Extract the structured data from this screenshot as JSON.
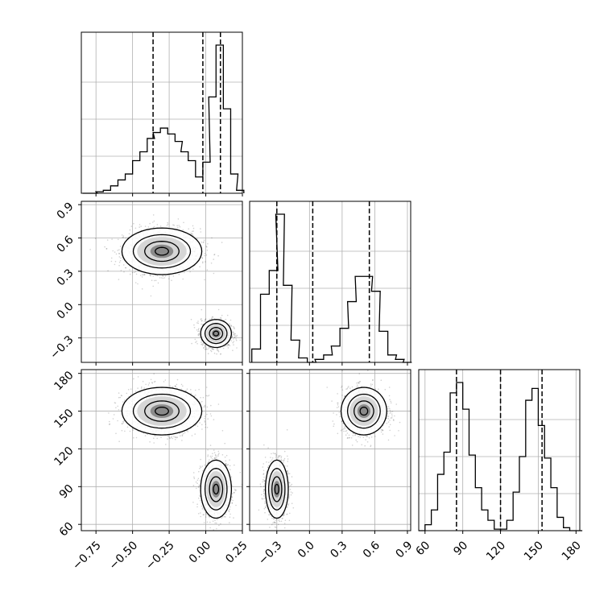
{
  "chart_data": {
    "type": "corner",
    "description_of_parameters": "three parameters, no printed names",
    "grid": true,
    "panels": {
      "hist_p1": {
        "type": "histogram",
        "parameter": 1,
        "xlim": [
          -0.85,
          0.25
        ],
        "quantile_lines": [
          -0.36,
          -0.02,
          0.1
        ],
        "bins": [
          [
            -0.84,
            0.0
          ],
          [
            -0.79,
            0.0
          ],
          [
            -0.75,
            0.01
          ],
          [
            -0.7,
            0.02
          ],
          [
            -0.65,
            0.05
          ],
          [
            -0.6,
            0.09
          ],
          [
            -0.55,
            0.13
          ],
          [
            -0.5,
            0.22
          ],
          [
            -0.45,
            0.28
          ],
          [
            -0.4,
            0.37
          ],
          [
            -0.36,
            0.41
          ],
          [
            -0.31,
            0.44
          ],
          [
            -0.26,
            0.4
          ],
          [
            -0.21,
            0.35
          ],
          [
            -0.17,
            0.28
          ],
          [
            -0.12,
            0.22
          ],
          [
            -0.07,
            0.11
          ],
          [
            -0.02,
            0.21
          ],
          [
            0.02,
            0.65
          ],
          [
            0.07,
            1.0
          ],
          [
            0.12,
            0.57
          ],
          [
            0.17,
            0.13
          ],
          [
            0.21,
            0.02
          ]
        ]
      },
      "hist_p2": {
        "type": "histogram",
        "parameter": 2,
        "xlim": [
          -0.55,
          0.93
        ],
        "quantile_lines": [
          -0.3,
          0.03,
          0.55
        ],
        "bins": [
          [
            -0.53,
            0.09
          ],
          [
            -0.45,
            0.46
          ],
          [
            -0.37,
            0.62
          ],
          [
            -0.31,
            1.0
          ],
          [
            -0.24,
            0.52
          ],
          [
            -0.17,
            0.15
          ],
          [
            -0.1,
            0.03
          ],
          [
            -0.02,
            0.0
          ],
          [
            0.05,
            0.02
          ],
          [
            0.13,
            0.05
          ],
          [
            0.2,
            0.11
          ],
          [
            0.28,
            0.23
          ],
          [
            0.35,
            0.41
          ],
          [
            0.42,
            0.58
          ],
          [
            0.5,
            0.58
          ],
          [
            0.57,
            0.48
          ],
          [
            0.64,
            0.21
          ],
          [
            0.72,
            0.05
          ],
          [
            0.79,
            0.02
          ],
          [
            0.86,
            0.0
          ]
        ]
      },
      "hist_p3": {
        "type": "histogram",
        "parameter": 3,
        "xlim": [
          55,
          183
        ],
        "quantile_lines": [
          85,
          120,
          153
        ],
        "bins": [
          [
            55,
            0.0
          ],
          [
            60,
            0.04
          ],
          [
            65,
            0.14
          ],
          [
            70,
            0.38
          ],
          [
            75,
            0.53
          ],
          [
            80,
            0.93
          ],
          [
            85,
            1.0
          ],
          [
            90,
            0.82
          ],
          [
            95,
            0.51
          ],
          [
            100,
            0.29
          ],
          [
            105,
            0.14
          ],
          [
            110,
            0.07
          ],
          [
            115,
            0.01
          ],
          [
            120,
            0.01
          ],
          [
            125,
            0.07
          ],
          [
            130,
            0.26
          ],
          [
            135,
            0.5
          ],
          [
            140,
            0.88
          ],
          [
            145,
            0.96
          ],
          [
            150,
            0.71
          ],
          [
            155,
            0.49
          ],
          [
            160,
            0.29
          ],
          [
            165,
            0.09
          ],
          [
            170,
            0.02
          ],
          [
            175,
            0.0
          ],
          [
            180,
            0.0
          ]
        ]
      },
      "scatter_p1_p2": {
        "type": "scatter-density",
        "x_parameter": 1,
        "y_parameter": 2,
        "xlim": [
          -0.85,
          0.25
        ],
        "ylim": [
          -0.52,
          0.93
        ],
        "clusters": [
          {
            "center": [
              -0.3,
              0.48
            ],
            "sd": [
              0.13,
              0.1
            ],
            "weight": 0.5
          },
          {
            "center": [
              0.07,
              -0.26
            ],
            "sd": [
              0.05,
              0.06
            ],
            "weight": 0.5
          }
        ]
      },
      "scatter_p1_p3": {
        "type": "scatter-density",
        "x_parameter": 1,
        "y_parameter": 3,
        "xlim": [
          -0.85,
          0.25
        ],
        "ylim": [
          55,
          183
        ],
        "clusters": [
          {
            "center": [
              -0.3,
              150
            ],
            "sd": [
              0.13,
              9
            ],
            "weight": 0.5
          },
          {
            "center": [
              0.07,
              88
            ],
            "sd": [
              0.05,
              11
            ],
            "weight": 0.5
          }
        ]
      },
      "scatter_p2_p3": {
        "type": "scatter-density",
        "x_parameter": 2,
        "y_parameter": 3,
        "xlim": [
          -0.55,
          0.93
        ],
        "ylim": [
          55,
          183
        ],
        "clusters": [
          {
            "center": [
              -0.3,
              88
            ],
            "sd": [
              0.05,
              11
            ],
            "weight": 0.5
          },
          {
            "center": [
              0.5,
              150
            ],
            "sd": [
              0.1,
              9
            ],
            "weight": 0.5
          }
        ]
      }
    },
    "ticks": {
      "p1_x": [
        "−0.75",
        "−0.50",
        "−0.25",
        "0.00",
        "0.25"
      ],
      "p1_x_values": [
        -0.75,
        -0.5,
        -0.25,
        0.0,
        0.25
      ],
      "p2_x": [
        "−0.3",
        "0.0",
        "0.3",
        "0.6",
        "0.9"
      ],
      "p2_x_values": [
        -0.3,
        0.0,
        0.3,
        0.6,
        0.9
      ],
      "p2_y": [
        "−0.3",
        "0.0",
        "0.3",
        "0.6",
        "0.9"
      ],
      "p2_y_values": [
        -0.3,
        0.0,
        0.3,
        0.6,
        0.9
      ],
      "p3_x": [
        "60",
        "90",
        "120",
        "150",
        "180"
      ],
      "p3_x_values": [
        60,
        90,
        120,
        150,
        180
      ],
      "p3_y": [
        "60",
        "90",
        "120",
        "150",
        "180"
      ],
      "p3_y_values": [
        60,
        90,
        120,
        150,
        180
      ]
    },
    "colors": {
      "line": "#000000",
      "grid": "#b0b0b0",
      "points": "#000000"
    }
  }
}
